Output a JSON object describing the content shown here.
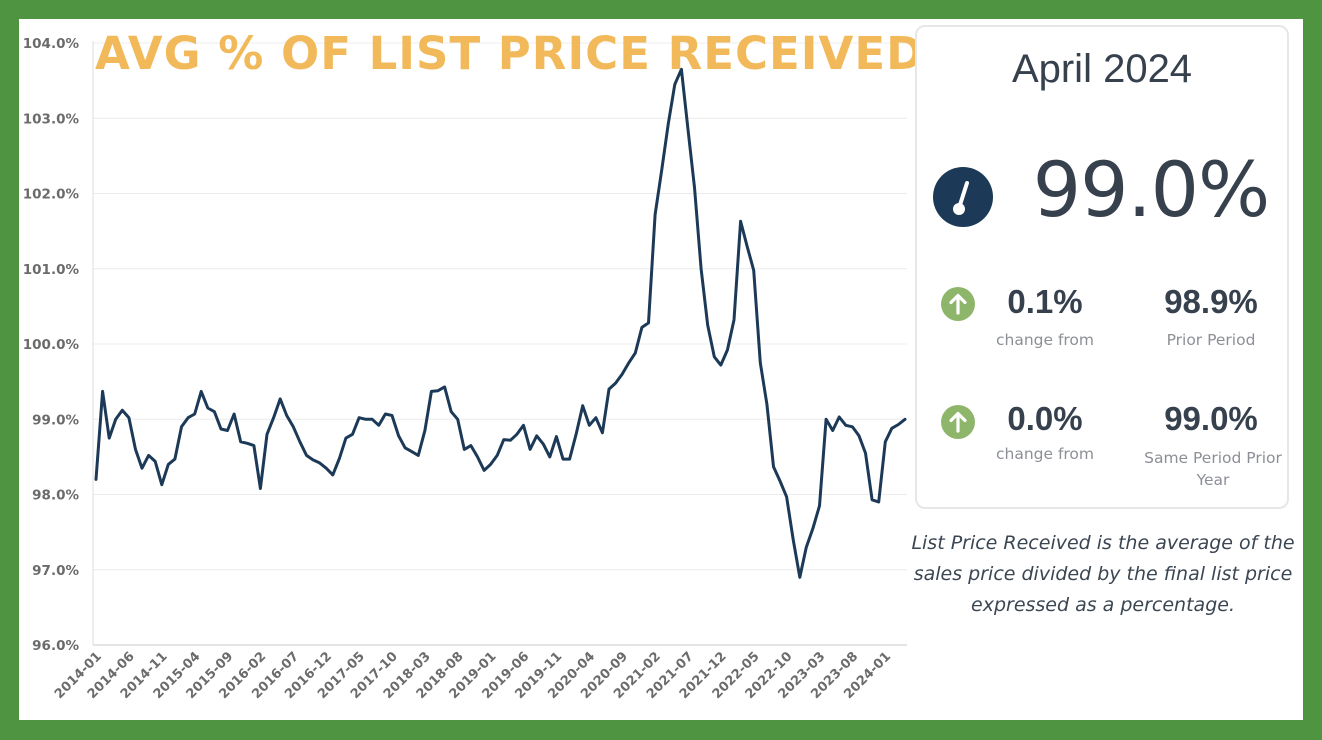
{
  "chart_data": {
    "type": "line",
    "title": "AVG % OF LIST PRICE RECEIVED",
    "xlabel": "",
    "ylabel": "",
    "ylim": [
      96,
      104
    ],
    "grid": true,
    "y_ticks": [
      "96.0%",
      "97.0%",
      "98.0%",
      "99.0%",
      "100.0%",
      "101.0%",
      "102.0%",
      "103.0%",
      "104.0%"
    ],
    "x_ticks": [
      "2014-01",
      "2014-06",
      "2014-11",
      "2015-04",
      "2015-09",
      "2016-02",
      "2016-07",
      "2016-12",
      "2017-05",
      "2017-10",
      "2018-03",
      "2018-08",
      "2019-01",
      "2019-06",
      "2019-11",
      "2020-04",
      "2020-09",
      "2021-02",
      "2021-07",
      "2021-12",
      "2022-05",
      "2022-10",
      "2023-03",
      "2023-08",
      "2024-01"
    ],
    "start": "2014-01",
    "line_color": "#1c3a57",
    "series": [
      {
        "values": [
          98.2,
          99.37,
          98.75,
          99.0,
          99.12,
          99.02,
          98.6,
          98.35,
          98.52,
          98.44,
          98.13,
          98.4,
          98.47,
          98.9,
          99.02,
          99.07,
          99.37,
          99.15,
          99.1,
          98.87,
          98.85,
          99.07,
          98.7,
          98.68,
          98.65,
          98.08,
          98.8,
          99.02,
          99.27,
          99.05,
          98.9,
          98.7,
          98.52,
          98.46,
          98.42,
          98.35,
          98.26,
          98.48,
          98.75,
          98.8,
          99.02,
          99.0,
          99.0,
          98.92,
          99.07,
          99.05,
          98.78,
          98.62,
          98.57,
          98.52,
          98.85,
          99.37,
          99.38,
          99.43,
          99.1,
          99.0,
          98.6,
          98.65,
          98.5,
          98.32,
          98.4,
          98.52,
          98.73,
          98.72,
          98.8,
          98.92,
          98.6,
          98.78,
          98.67,
          98.5,
          98.77,
          98.47,
          98.47,
          98.8,
          99.18,
          98.92,
          99.02,
          98.82,
          99.4,
          99.48,
          99.6,
          99.75,
          99.88,
          100.22,
          100.28,
          101.72,
          102.3,
          102.92,
          103.45,
          103.65,
          102.85,
          102.08,
          101.0,
          100.25,
          99.83,
          99.72,
          99.92,
          100.32,
          101.63,
          101.3,
          100.98,
          99.75,
          99.2,
          98.37,
          98.18,
          97.97,
          97.4,
          96.9,
          97.3,
          97.55,
          97.85,
          99.0,
          98.85,
          99.03,
          98.92,
          98.9,
          98.78,
          98.55,
          97.93,
          97.9,
          98.7,
          98.88,
          98.93,
          99.0
        ]
      }
    ]
  },
  "panel": {
    "period": "April 2024",
    "icon": "gauge-icon",
    "headline_value": "99.0%",
    "stats": [
      {
        "icon": "arrow-up-circle-icon",
        "change": "0.1%",
        "change_label": "change from",
        "compare_value": "98.9%",
        "compare_label": "Prior Period"
      },
      {
        "icon": "arrow-up-circle-icon",
        "change": "0.0%",
        "change_label": "change from",
        "compare_value": "99.0%",
        "compare_label": "Same Period Prior Year"
      }
    ],
    "description": "List Price Received is the average of the sales price divided by the final list price expressed as a percentage."
  },
  "colors": {
    "frame": "#4f9440",
    "title": "#f2b95a",
    "line": "#1c3a57",
    "up_arrow": "#8eb66b",
    "gauge": "#1c3a57"
  }
}
